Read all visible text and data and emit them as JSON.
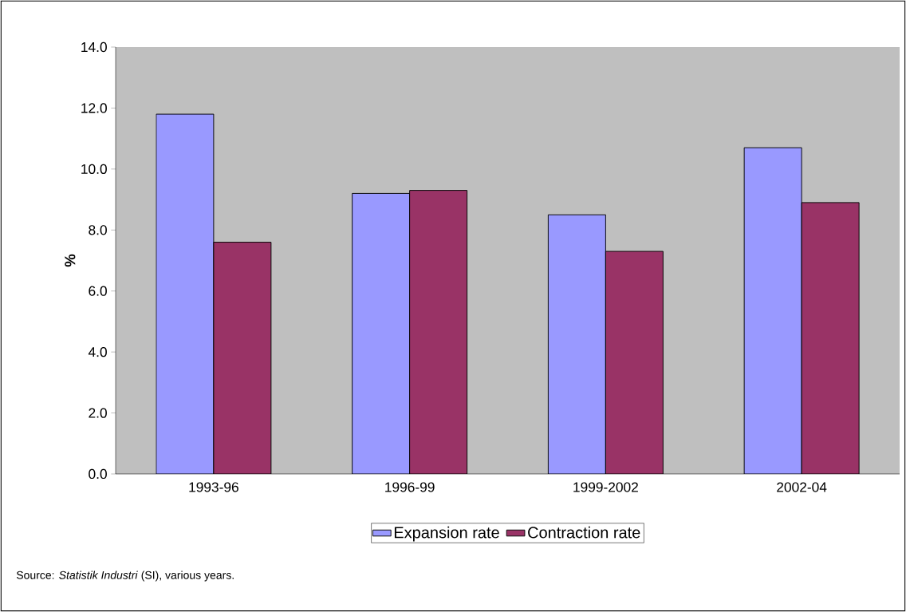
{
  "chart_data": {
    "type": "bar",
    "categories": [
      "1993-96",
      "1996-99",
      "1999-2002",
      "2002-04"
    ],
    "ylabel": "%",
    "series": [
      {
        "name": "Expansion rate",
        "color": "#9999ff",
        "values": [
          11.8,
          9.2,
          8.5,
          10.7
        ]
      },
      {
        "name": "Contraction rate",
        "color": "#993366",
        "values": [
          7.6,
          9.3,
          7.3,
          8.9
        ]
      }
    ],
    "ylim": [
      0,
      14
    ],
    "yticks": [
      {
        "value": 0,
        "label": "0.0"
      },
      {
        "value": 2,
        "label": "2.0"
      },
      {
        "value": 4,
        "label": "4.0"
      },
      {
        "value": 6,
        "label": "6.0"
      },
      {
        "value": 8,
        "label": "8.0"
      },
      {
        "value": 10,
        "label": "10.0"
      },
      {
        "value": 12,
        "label": "12.0"
      },
      {
        "value": 14,
        "label": "14.0"
      }
    ],
    "legend": "bottom",
    "grid": false,
    "annotations": [
      "Source: *Statistik Industri* (SI), various years."
    ]
  }
}
